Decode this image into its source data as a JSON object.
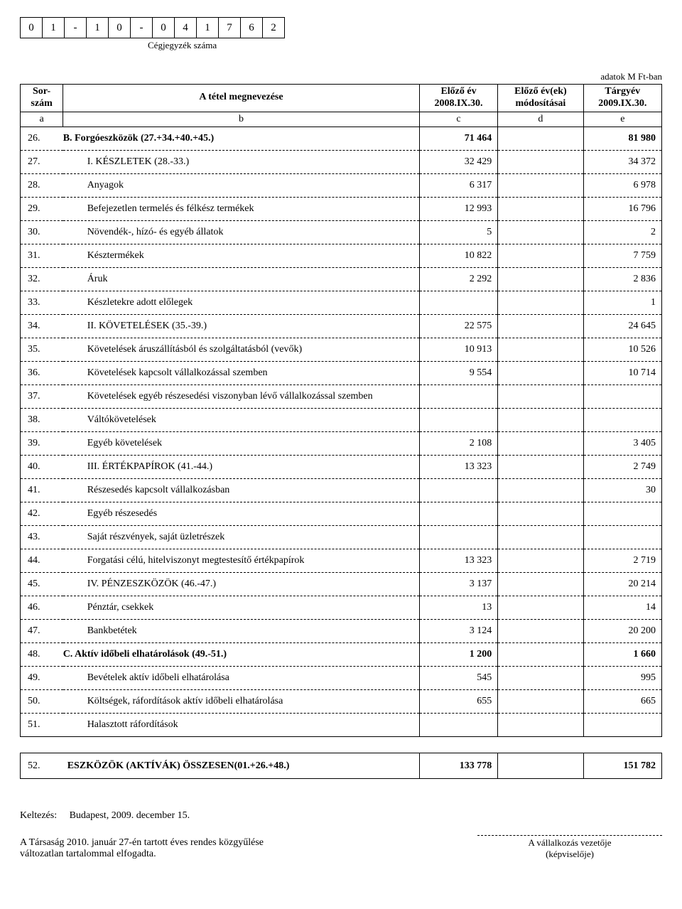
{
  "registry": {
    "cells": [
      "0",
      "1",
      "-",
      "1",
      "0",
      "-",
      "0",
      "4",
      "1",
      "7",
      "6",
      "2"
    ],
    "label": "Cégjegyzék száma"
  },
  "units_label": "adatok M Ft-ban",
  "header": {
    "sor": "Sor-\nszám",
    "megnev": "A tétel megnevezése",
    "elozo": "Előző év\n2008.IX.30.",
    "modositas": "Előző év(ek)\nmódosításai",
    "targyev": "Tárgyév\n2009.IX.30.",
    "a": "a",
    "b": "b",
    "c": "c",
    "d": "d",
    "e": "e"
  },
  "rows": [
    {
      "n": "26.",
      "name": "B.  Forgóeszközök (27.+34.+40.+45.)",
      "c": "71 464",
      "d": "",
      "e": "81 980",
      "bold": true,
      "solidTop": true
    },
    {
      "n": "27.",
      "name": "I.  KÉSZLETEK (28.-33.)",
      "c": "32 429",
      "d": "",
      "e": "34 372",
      "indent": true
    },
    {
      "n": "28.",
      "name": "Anyagok",
      "c": "6 317",
      "d": "",
      "e": "6 978",
      "indent": true
    },
    {
      "n": "29.",
      "name": "Befejezetlen termelés és félkész termékek",
      "c": "12 993",
      "d": "",
      "e": "16 796",
      "indent": true
    },
    {
      "n": "30.",
      "name": "Növendék-, hízó- és egyéb állatok",
      "c": "5",
      "d": "",
      "e": "2",
      "indent": true
    },
    {
      "n": "31.",
      "name": "Késztermékek",
      "c": "10 822",
      "d": "",
      "e": "7 759",
      "indent": true
    },
    {
      "n": "32.",
      "name": "Áruk",
      "c": "2 292",
      "d": "",
      "e": "2 836",
      "indent": true
    },
    {
      "n": "33.",
      "name": "Készletekre adott előlegek",
      "c": "",
      "d": "",
      "e": "1",
      "indent": true
    },
    {
      "n": "34.",
      "name": "II.  KÖVETELÉSEK (35.-39.)",
      "c": "22 575",
      "d": "",
      "e": "24 645",
      "indent": true
    },
    {
      "n": "35.",
      "name": "Követelések áruszállításból és szolgáltatásból (vevők)",
      "c": "10 913",
      "d": "",
      "e": "10 526",
      "indent": true
    },
    {
      "n": "36.",
      "name": "Követelések kapcsolt vállalkozással szemben",
      "c": "9 554",
      "d": "",
      "e": "10 714",
      "indent": true
    },
    {
      "n": "37.",
      "name": "Követelések egyéb részesedési viszonyban lévő vállalkozással szemben",
      "c": "",
      "d": "",
      "e": "",
      "indent": true
    },
    {
      "n": "38.",
      "name": "Váltókövetelések",
      "c": "",
      "d": "",
      "e": "",
      "indent": true
    },
    {
      "n": "39.",
      "name": "Egyéb követelések",
      "c": "2 108",
      "d": "",
      "e": "3 405",
      "indent": true
    },
    {
      "n": "40.",
      "name": "III. ÉRTÉKPAPÍROK (41.-44.)",
      "c": "13 323",
      "d": "",
      "e": "2 749",
      "indent": true
    },
    {
      "n": "41.",
      "name": "Részesedés kapcsolt vállalkozásban",
      "c": "",
      "d": "",
      "e": "30",
      "indent": true
    },
    {
      "n": "42.",
      "name": "Egyéb részesedés",
      "c": "",
      "d": "",
      "e": "",
      "indent": true
    },
    {
      "n": "43.",
      "name": "Saját részvények, saját üzletrészek",
      "c": "",
      "d": "",
      "e": "",
      "indent": true
    },
    {
      "n": "44.",
      "name": "Forgatási célú, hitelviszonyt megtestesítő értékpapírok",
      "c": "13 323",
      "d": "",
      "e": "2 719",
      "indent": true
    },
    {
      "n": "45.",
      "name": "IV. PÉNZESZKÖZÖK (46.-47.)",
      "c": "3 137",
      "d": "",
      "e": "20 214",
      "indent": true
    },
    {
      "n": "46.",
      "name": "Pénztár, csekkek",
      "c": "13",
      "d": "",
      "e": "14",
      "indent": true
    },
    {
      "n": "47.",
      "name": "Bankbetétek",
      "c": "3 124",
      "d": "",
      "e": "20 200",
      "indent": true
    },
    {
      "n": "48.",
      "name": "C.  Aktív időbeli elhatárolások  (49.-51.)",
      "c": "1 200",
      "d": "",
      "e": "1 660",
      "bold": true
    },
    {
      "n": "49.",
      "name": "Bevételek aktív időbeli elhatárolása",
      "c": "545",
      "d": "",
      "e": "995",
      "indent": true
    },
    {
      "n": "50.",
      "name": "Költségek, ráfordítások aktív időbeli elhatárolása",
      "c": "655",
      "d": "",
      "e": "665",
      "indent": true
    },
    {
      "n": "51.",
      "name": "Halasztott ráfordítások",
      "c": "",
      "d": "",
      "e": "",
      "indent": true,
      "solidBottom": true,
      "noDash": true
    }
  ],
  "total": {
    "n": "52.",
    "name": "ESZKÖZÖK (AKTÍVÁK) ÖSSZESEN(01.+26.+48.)",
    "c": "133 778",
    "d": "",
    "e": "151 782"
  },
  "footer": {
    "keltezes_label": "Keltezés:",
    "keltezes_value": "Budapest, 2009. december 15.",
    "note_line1": "A Társaság 2010. január 27-én tartott éves rendes közgyűlése",
    "note_line2": "változatlan tartalommal elfogadta.",
    "sig_line1": "A vállalkozás vezetője",
    "sig_line2": "(képviselője)"
  }
}
